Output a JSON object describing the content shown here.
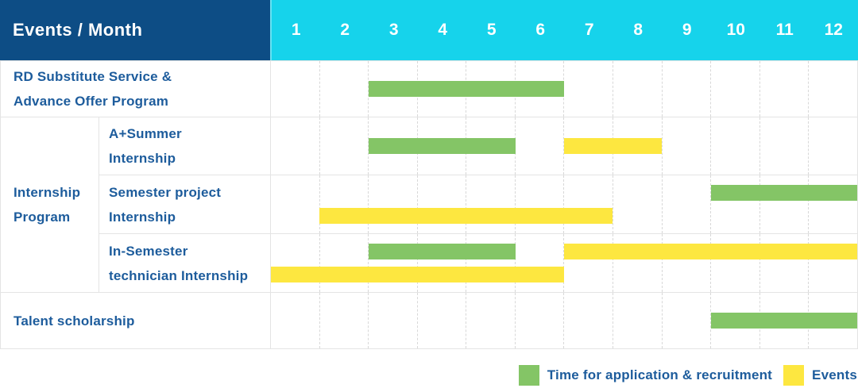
{
  "title": "Events / Month",
  "colors": {
    "header_bg": "#0d4d85",
    "months_bg": "#16d3eb",
    "bar_green": "#84c566",
    "bar_yellow": "#fde740",
    "label_text": "#1d5c9c",
    "grid_line": "#e4e4e4",
    "dash_line": "#d8d8d8"
  },
  "legend": {
    "items": [
      {
        "color": "bar_green",
        "label": "Time for application & recruitment"
      },
      {
        "color": "bar_yellow",
        "label": "Events"
      }
    ]
  },
  "chart_data": {
    "type": "gantt",
    "title": "Events / Month",
    "months": [
      "1",
      "2",
      "3",
      "4",
      "5",
      "6",
      "7",
      "8",
      "9",
      "10",
      "11",
      "12"
    ],
    "x_range": [
      1,
      12
    ],
    "legend_position": "bottom-right",
    "group_label": "Internship Program",
    "group_label_lines": [
      "Internship",
      "Program"
    ],
    "rows": [
      {
        "id": "rd-substitute",
        "label": "RD Substitute Service & Advance Offer Program",
        "label_lines": [
          "RD Substitute Service &",
          "Advance Offer Program"
        ],
        "group": null,
        "lanes": [
          [
            {
              "color": "bar_green",
              "start_month": 3,
              "end_month": 6
            }
          ]
        ]
      },
      {
        "id": "a-plus-summer-internship",
        "label": "A+Summer Internship",
        "label_lines": [
          "A+Summer",
          "Internship"
        ],
        "group": "Internship Program",
        "lanes": [
          [
            {
              "color": "bar_green",
              "start_month": 3,
              "end_month": 5
            },
            {
              "color": "bar_yellow",
              "start_month": 7,
              "end_month": 8
            }
          ]
        ]
      },
      {
        "id": "semester-project-internship",
        "label": "Semester project Internship",
        "label_lines": [
          "Semester project",
          "Internship"
        ],
        "group": "Internship Program",
        "lanes": [
          [
            {
              "color": "bar_green",
              "start_month": 10,
              "end_month": 12
            }
          ],
          [
            {
              "color": "bar_yellow",
              "start_month": 2,
              "end_month": 7
            }
          ]
        ]
      },
      {
        "id": "in-semester-technician-internship",
        "label": "In-Semester technician Internship",
        "label_lines": [
          "In-Semester",
          "technician Internship"
        ],
        "group": "Internship Program",
        "lanes": [
          [
            {
              "color": "bar_green",
              "start_month": 3,
              "end_month": 5
            },
            {
              "color": "bar_yellow",
              "start_month": 7,
              "end_month": 12
            }
          ],
          [
            {
              "color": "bar_yellow",
              "start_month": 1,
              "end_month": 6
            }
          ]
        ]
      },
      {
        "id": "talent-scholarship",
        "label": "Talent scholarship",
        "label_lines": [
          "Talent scholarship"
        ],
        "group": null,
        "lanes": [
          [
            {
              "color": "bar_green",
              "start_month": 10,
              "end_month": 12
            }
          ]
        ]
      }
    ]
  }
}
